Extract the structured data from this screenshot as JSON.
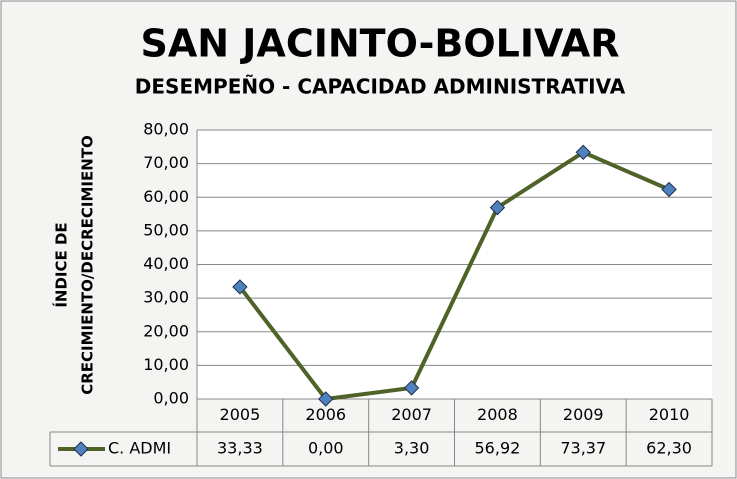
{
  "chart_data": {
    "type": "line",
    "title": "SAN JACINTO-BOLIVAR",
    "subtitle": "DESEMPEÑO - CAPACIDAD ADMINISTRATIVA",
    "y_label": [
      "ÍNDICE  DE",
      "CRECIMIENTO/DECRECIMIENTO"
    ],
    "categories": [
      "2005",
      "2006",
      "2007",
      "2008",
      "2009",
      "2010"
    ],
    "series": [
      {
        "name": "C. ADMI",
        "color": "#4f6228",
        "marker_color": "#4f81bd",
        "values": [
          33.33,
          0.0,
          3.3,
          56.92,
          73.37,
          62.3
        ],
        "value_labels": [
          "33,33",
          "0,00",
          "3,30",
          "56,92",
          "73,37",
          "62,30"
        ]
      }
    ],
    "ylim": [
      0,
      80
    ],
    "yticks": [
      {
        "value": 0,
        "label": "0,00"
      },
      {
        "value": 10,
        "label": "10,00"
      },
      {
        "value": 20,
        "label": "20,00"
      },
      {
        "value": 30,
        "label": "30,00"
      },
      {
        "value": 40,
        "label": "40,00"
      },
      {
        "value": 50,
        "label": "50,00"
      },
      {
        "value": 60,
        "label": "60,00"
      },
      {
        "value": 70,
        "label": "70,00"
      },
      {
        "value": 80,
        "label": "80,00"
      }
    ],
    "grid": true,
    "data_table": true
  }
}
